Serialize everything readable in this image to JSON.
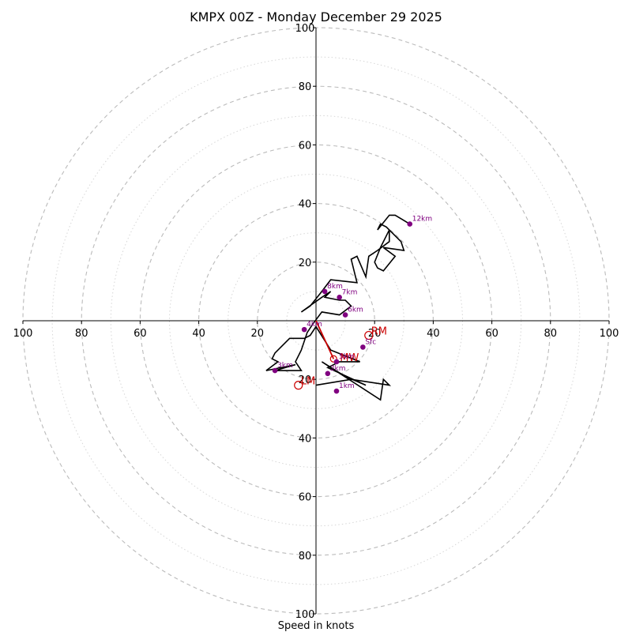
{
  "chart_data": {
    "type": "hodograph",
    "title": "KMPX 00Z - Monday December 29 2025",
    "xlabel": "Speed in knots",
    "units": "knots",
    "max_speed": 100,
    "ring_step_major": 20,
    "ring_step_minor": 10,
    "x_ticks": [
      "100",
      "80",
      "60",
      "40",
      "20",
      "20",
      "40",
      "60",
      "80",
      "100"
    ],
    "y_ticks": [
      "100",
      "80",
      "60",
      "40",
      "20",
      "20",
      "40",
      "60",
      "80",
      "100"
    ],
    "trace_color": "#000000",
    "mean_wind_color": "#cc0000",
    "marker_color": "#800080",
    "trace": [
      [
        0,
        -22
      ],
      [
        12,
        -20
      ],
      [
        25,
        -22
      ],
      [
        23,
        -20
      ],
      [
        22,
        -27
      ],
      [
        2,
        -14
      ],
      [
        10,
        -19
      ],
      [
        17,
        -22
      ],
      [
        4,
        -16
      ],
      [
        8,
        -14
      ],
      [
        12,
        -14
      ],
      [
        15,
        -14
      ],
      [
        5,
        -10
      ],
      [
        0,
        -2
      ],
      [
        -2,
        -5
      ],
      [
        -4,
        -6
      ],
      [
        -9,
        -6
      ],
      [
        -14,
        -11
      ],
      [
        -15,
        -13
      ],
      [
        -13,
        -14
      ],
      [
        -17,
        -17
      ],
      [
        -7,
        -15
      ],
      [
        -14,
        -17
      ],
      [
        -5,
        -17
      ],
      [
        -7,
        -14
      ],
      [
        -5,
        -10
      ],
      [
        -3,
        -4
      ],
      [
        -1,
        -1
      ],
      [
        2,
        3
      ],
      [
        8,
        2
      ],
      [
        12,
        5
      ],
      [
        10,
        7
      ],
      [
        8,
        7
      ],
      [
        3,
        8
      ],
      [
        5,
        10
      ],
      [
        2,
        8
      ],
      [
        -5,
        3
      ],
      [
        -2,
        5
      ],
      [
        2,
        10
      ],
      [
        5,
        14
      ],
      [
        14,
        13
      ],
      [
        12,
        21
      ],
      [
        14,
        22
      ],
      [
        17,
        15
      ],
      [
        18,
        22
      ],
      [
        21,
        24
      ],
      [
        25,
        27
      ],
      [
        25,
        31
      ],
      [
        22,
        25
      ],
      [
        20,
        20
      ],
      [
        21,
        18
      ],
      [
        23,
        17
      ],
      [
        27,
        22
      ],
      [
        23,
        25
      ],
      [
        30,
        24
      ],
      [
        29,
        27
      ],
      [
        27,
        29
      ],
      [
        24,
        32
      ],
      [
        22,
        33
      ],
      [
        21,
        31
      ],
      [
        25,
        36
      ],
      [
        27,
        36
      ],
      [
        32,
        33
      ]
    ],
    "height_labels": [
      {
        "label": "Sfc",
        "u": 16,
        "v": -9
      },
      {
        "label": "1km",
        "u": 7,
        "v": -24
      },
      {
        "label": "2km",
        "u": 4,
        "v": -18
      },
      {
        "label": "3km",
        "u": -14,
        "v": -17
      },
      {
        "label": "4km",
        "u": -4,
        "v": -3
      },
      {
        "label": "5km",
        "u": 7,
        "v": -14
      },
      {
        "label": "6km",
        "u": 10,
        "v": 2
      },
      {
        "label": "7km",
        "u": 8,
        "v": 8
      },
      {
        "label": "8km",
        "u": 3,
        "v": 10
      },
      {
        "label": "12km",
        "u": 32,
        "v": 33
      }
    ],
    "motion_points": [
      {
        "label": "RM",
        "u": 18,
        "v": -5
      },
      {
        "label": "LM",
        "u": -6,
        "v": -22
      }
    ],
    "mean_wind": {
      "label": "MW",
      "u": 6,
      "v": -13
    }
  }
}
